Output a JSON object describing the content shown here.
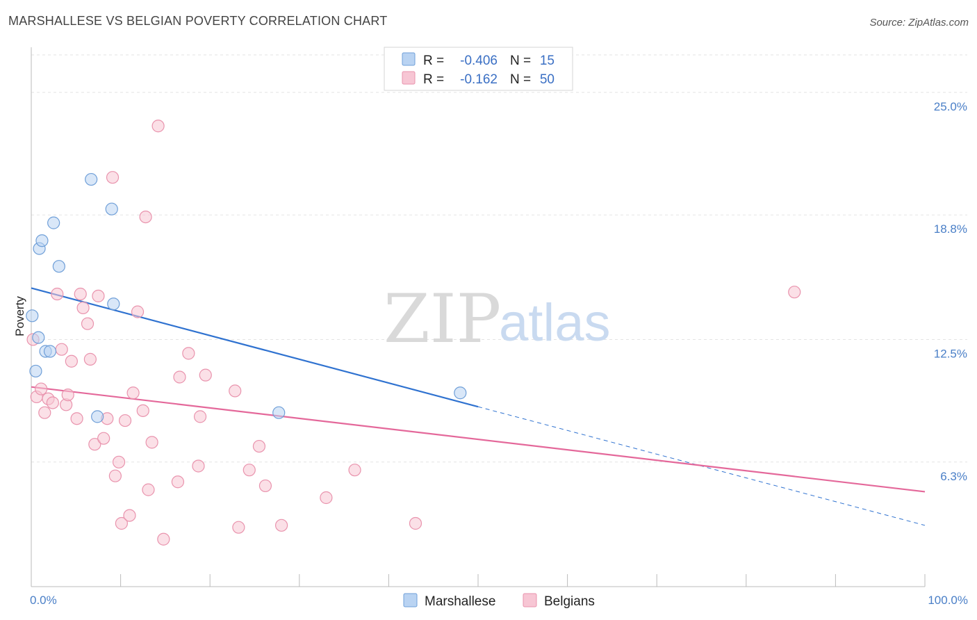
{
  "title": "MARSHALLESE VS BELGIAN POVERTY CORRELATION CHART",
  "source": "Source: ZipAtlas.com",
  "watermark": {
    "zip": "ZIP",
    "atlas": "atlas"
  },
  "legend": {
    "r_label": "R =",
    "n_label": "N =",
    "rows": [
      {
        "series": "Marshallese",
        "r": "-0.406",
        "n": "15"
      },
      {
        "series": "Belgians",
        "r": "-0.162",
        "n": "50"
      }
    ]
  },
  "colors": {
    "marshallese_fill": "#b9d3f2",
    "marshallese_stroke": "#6f9fd8",
    "marshallese_line": "#2f72d0",
    "belgians_fill": "#f7c6d4",
    "belgians_stroke": "#e993ad",
    "belgians_line": "#e4689a",
    "grid": "#e3e3e3",
    "axis_label": "#4a7fc7"
  },
  "chart_data": {
    "type": "scatter",
    "title": "MARSHALLESE VS BELGIAN POVERTY CORRELATION CHART",
    "xlabel": "",
    "ylabel": "Poverty",
    "xlim": [
      0,
      100
    ],
    "ylim": [
      0,
      27.0
    ],
    "x_tick_labels": [
      "0.0%",
      "100.0%"
    ],
    "y_ticks": [
      6.3,
      12.5,
      18.8,
      25.0
    ],
    "y_tick_labels": [
      "6.3%",
      "12.5%",
      "18.8%",
      "25.0%"
    ],
    "grid": true,
    "legend_position": "bottom",
    "series": [
      {
        "name": "Marshallese",
        "points": [
          [
            0.1,
            13.7
          ],
          [
            0.5,
            10.9
          ],
          [
            0.9,
            17.1
          ],
          [
            1.2,
            17.5
          ],
          [
            1.6,
            11.9
          ],
          [
            2.1,
            11.9
          ],
          [
            2.5,
            18.4
          ],
          [
            3.1,
            16.2
          ],
          [
            0.8,
            12.6
          ],
          [
            6.7,
            20.6
          ],
          [
            9.0,
            19.1
          ],
          [
            9.2,
            14.3
          ],
          [
            7.4,
            8.6
          ],
          [
            27.7,
            8.8
          ],
          [
            48.0,
            9.8
          ]
        ],
        "trend": {
          "x": [
            0,
            50
          ],
          "y": [
            15.1,
            9.1
          ]
        },
        "trend_extension": {
          "x": [
            50,
            100
          ],
          "y": [
            9.1,
            3.1
          ]
        }
      },
      {
        "name": "Belgians",
        "points": [
          [
            0.2,
            12.5
          ],
          [
            0.6,
            9.6
          ],
          [
            1.1,
            10.0
          ],
          [
            1.5,
            8.8
          ],
          [
            1.9,
            9.5
          ],
          [
            2.4,
            9.3
          ],
          [
            2.9,
            14.8
          ],
          [
            3.4,
            12.0
          ],
          [
            3.9,
            9.2
          ],
          [
            4.1,
            9.7
          ],
          [
            4.5,
            11.4
          ],
          [
            5.1,
            8.5
          ],
          [
            5.5,
            14.8
          ],
          [
            5.8,
            14.1
          ],
          [
            6.3,
            13.3
          ],
          [
            6.6,
            11.5
          ],
          [
            7.1,
            7.2
          ],
          [
            7.5,
            14.7
          ],
          [
            8.1,
            7.5
          ],
          [
            8.5,
            8.5
          ],
          [
            9.1,
            20.7
          ],
          [
            9.4,
            5.6
          ],
          [
            9.8,
            6.3
          ],
          [
            10.1,
            3.2
          ],
          [
            10.5,
            8.4
          ],
          [
            11.0,
            3.6
          ],
          [
            11.4,
            9.8
          ],
          [
            11.9,
            13.9
          ],
          [
            12.5,
            8.9
          ],
          [
            12.8,
            18.7
          ],
          [
            13.1,
            4.9
          ],
          [
            13.5,
            7.3
          ],
          [
            14.2,
            23.3
          ],
          [
            14.8,
            2.4
          ],
          [
            16.4,
            5.3
          ],
          [
            16.6,
            10.6
          ],
          [
            17.6,
            11.8
          ],
          [
            18.7,
            6.1
          ],
          [
            18.9,
            8.6
          ],
          [
            19.5,
            10.7
          ],
          [
            22.8,
            9.9
          ],
          [
            23.2,
            3.0
          ],
          [
            24.4,
            5.9
          ],
          [
            25.5,
            7.1
          ],
          [
            26.2,
            5.1
          ],
          [
            28.0,
            3.1
          ],
          [
            33.0,
            4.5
          ],
          [
            36.2,
            5.9
          ],
          [
            43.0,
            3.2
          ],
          [
            85.4,
            14.9
          ]
        ],
        "trend": {
          "x": [
            0,
            100
          ],
          "y": [
            10.1,
            4.8
          ]
        }
      }
    ]
  }
}
